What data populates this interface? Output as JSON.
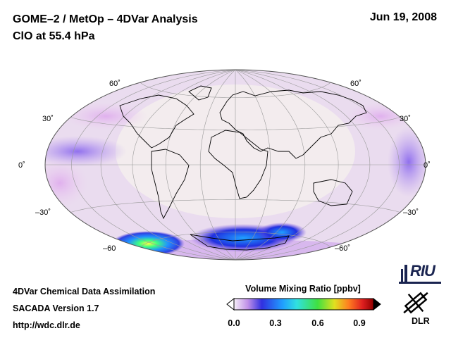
{
  "header": {
    "title_line1": "GOME–2 / MetOp – 4DVar Analysis",
    "title_line2": "ClO at 55.4 hPa",
    "date": "Jun 19, 2008"
  },
  "map": {
    "projection": "hammer-aitoff",
    "lat_labels": {
      "left": [
        "60˚",
        "30˚",
        "0˚",
        "–30˚",
        "–60"
      ],
      "right": [
        "60˚",
        "30˚",
        "0˚",
        "–30˚",
        "–60˚"
      ]
    },
    "ocean_tint": "#ead8ee",
    "land_tint": "#f2eaec"
  },
  "colorbar": {
    "title": "Volume Mixing Ratio [ppbv]",
    "ticks": [
      "0.0",
      "0.3",
      "0.6",
      "0.9"
    ],
    "range": [
      0.0,
      1.0
    ]
  },
  "footer": {
    "line1": "4DVar Chemical Data Assimilation",
    "line2": "SACADA Version 1.7",
    "line3": "http://wdc.dlr.de"
  },
  "logos": {
    "riu": "RIU",
    "dlr": "DLR"
  }
}
